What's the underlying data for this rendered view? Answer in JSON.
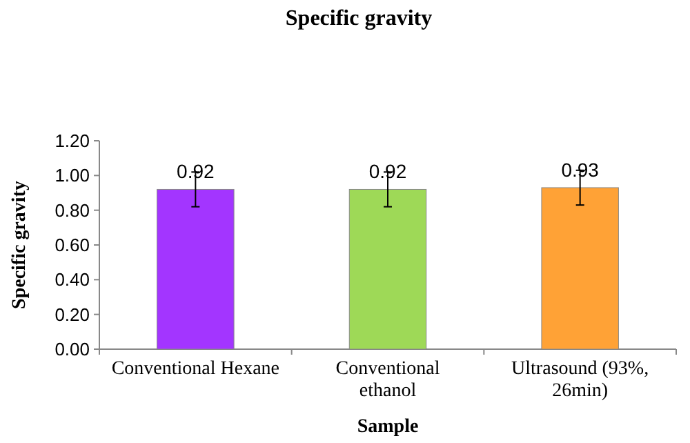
{
  "chart_data": {
    "type": "bar",
    "title": "Specific gravity",
    "xlabel": "Sample",
    "ylabel": "Specific gravity",
    "categories": [
      "Conventional Hexane",
      "Conventional ethanol",
      "Ultrasound (93%, 26min)"
    ],
    "values": [
      0.92,
      0.92,
      0.93
    ],
    "colors": [
      "#a335ff",
      "#9ed957",
      "#ffa236"
    ],
    "errors": [
      0.1,
      0.1,
      0.1
    ],
    "ylim": [
      0,
      1.2
    ],
    "yticks": [
      {
        "value": 0,
        "label": "0.00"
      },
      {
        "value": 0.2,
        "label": "0.20"
      },
      {
        "value": 0.4,
        "label": "0.40"
      },
      {
        "value": 0.6,
        "label": "0.60"
      },
      {
        "value": 0.8,
        "label": "0.80"
      },
      {
        "value": 1,
        "label": "1.00"
      },
      {
        "value": 1.2,
        "label": "1.20"
      }
    ],
    "data_labels": true,
    "grid": false
  }
}
